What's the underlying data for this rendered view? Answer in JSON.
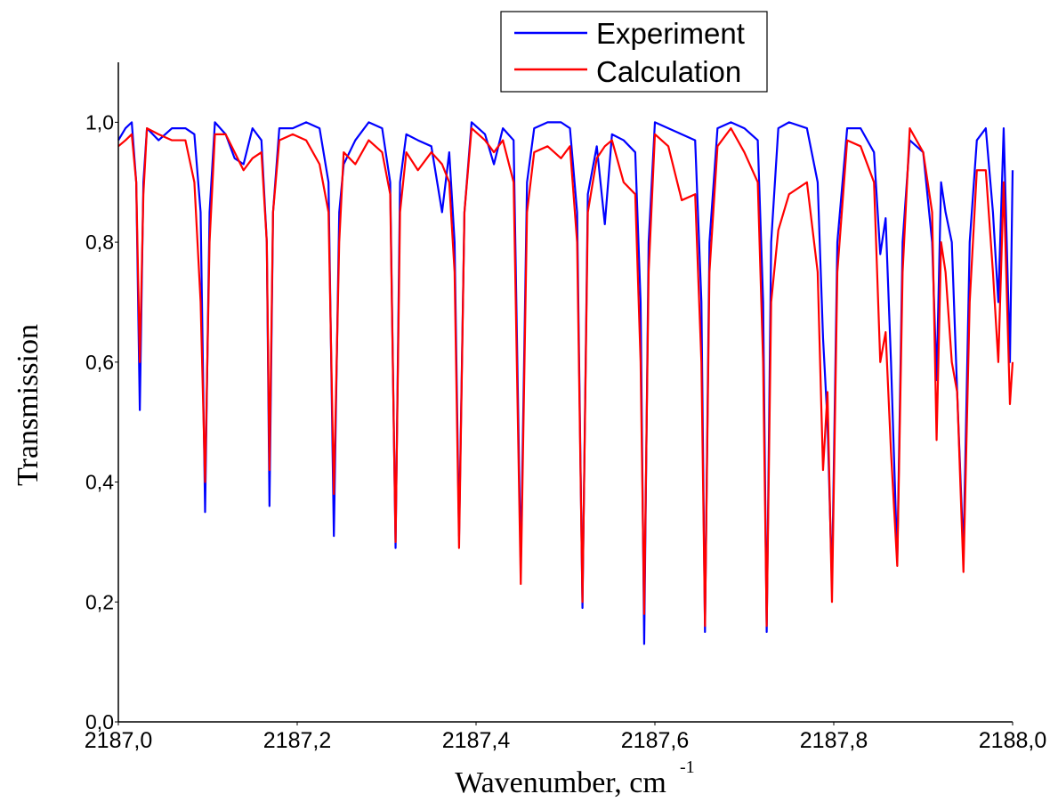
{
  "chart_data": {
    "type": "line",
    "x_label": "Wavenumber, cm",
    "x_label_sup": "-1",
    "y_label": "Transmission",
    "xlim": [
      2187,
      2188
    ],
    "ylim": [
      0,
      1.1
    ],
    "xticks": [
      {
        "value": 2187,
        "label": "2187,0"
      },
      {
        "value": 2187.2,
        "label": "2187,2"
      },
      {
        "value": 2187.4,
        "label": "2187,4"
      },
      {
        "value": 2187.6,
        "label": "2187,6"
      },
      {
        "value": 2187.8,
        "label": "2187,8"
      },
      {
        "value": 2188,
        "label": "2188,0"
      }
    ],
    "yticks": [
      {
        "value": 0,
        "label": "0,0"
      },
      {
        "value": 0.2,
        "label": "0,2"
      },
      {
        "value": 0.4,
        "label": "0,4"
      },
      {
        "value": 0.6,
        "label": "0,6"
      },
      {
        "value": 0.8,
        "label": "0,8"
      },
      {
        "value": 1,
        "label": "1,0"
      }
    ],
    "grid": false,
    "legend": "top-right",
    "x": [
      2187,
      2187.008,
      2187.015,
      2187.02,
      2187.024,
      2187.028,
      2187.032,
      2187.045,
      2187.06,
      2187.075,
      2187.085,
      2187.092,
      2187.097,
      2187.102,
      2187.108,
      2187.12,
      2187.13,
      2187.14,
      2187.15,
      2187.16,
      2187.166,
      2187.169,
      2187.173,
      2187.18,
      2187.195,
      2187.21,
      2187.225,
      2187.235,
      2187.241,
      2187.247,
      2187.252,
      2187.265,
      2187.28,
      2187.295,
      2187.304,
      2187.31,
      2187.315,
      2187.322,
      2187.335,
      2187.35,
      2187.362,
      2187.37,
      2187.376,
      2187.381,
      2187.387,
      2187.395,
      2187.41,
      2187.42,
      2187.43,
      2187.442,
      2187.45,
      2187.457,
      2187.465,
      2187.48,
      2187.495,
      2187.505,
      2187.513,
      2187.519,
      2187.525,
      2187.535,
      2187.544,
      2187.552,
      2187.565,
      2187.578,
      2187.584,
      2187.588,
      2187.593,
      2187.6,
      2187.615,
      2187.63,
      2187.645,
      2187.652,
      2187.656,
      2187.661,
      2187.67,
      2187.685,
      2187.7,
      2187.715,
      2187.721,
      2187.725,
      2187.73,
      2187.738,
      2187.75,
      2187.77,
      2187.782,
      2187.788,
      2187.793,
      2187.798,
      2187.804,
      2187.815,
      2187.83,
      2187.845,
      2187.852,
      2187.858,
      2187.864,
      2187.871,
      2187.877,
      2187.885,
      2187.9,
      2187.91,
      2187.915,
      2187.92,
      2187.925,
      2187.932,
      2187.938,
      2187.945,
      2187.952,
      2187.96,
      2187.97,
      2187.978,
      2187.984,
      2187.99,
      2187.997,
      2188
    ],
    "series": [
      {
        "name": "Experiment",
        "color": "#0000ff",
        "values": [
          0.97,
          0.99,
          1.0,
          0.9,
          0.52,
          0.9,
          0.99,
          0.97,
          0.99,
          0.99,
          0.98,
          0.85,
          0.35,
          0.85,
          1.0,
          0.98,
          0.94,
          0.93,
          0.99,
          0.97,
          0.8,
          0.36,
          0.85,
          0.99,
          0.99,
          1.0,
          0.99,
          0.9,
          0.31,
          0.85,
          0.93,
          0.97,
          1.0,
          0.99,
          0.9,
          0.29,
          0.9,
          0.98,
          0.97,
          0.96,
          0.85,
          0.95,
          0.8,
          0.31,
          0.85,
          1.0,
          0.98,
          0.93,
          0.99,
          0.97,
          0.26,
          0.9,
          0.99,
          1.0,
          1.0,
          0.99,
          0.85,
          0.19,
          0.88,
          0.96,
          0.83,
          0.98,
          0.97,
          0.95,
          0.7,
          0.13,
          0.8,
          1.0,
          0.99,
          0.98,
          0.97,
          0.7,
          0.15,
          0.8,
          0.99,
          1.0,
          0.99,
          0.97,
          0.7,
          0.15,
          0.8,
          0.99,
          1.0,
          0.99,
          0.9,
          0.64,
          0.5,
          0.23,
          0.8,
          0.99,
          0.99,
          0.95,
          0.78,
          0.84,
          0.6,
          0.27,
          0.8,
          0.97,
          0.95,
          0.8,
          0.57,
          0.9,
          0.85,
          0.8,
          0.55,
          0.28,
          0.8,
          0.97,
          0.99,
          0.85,
          0.7,
          0.99,
          0.6,
          0.92
        ]
      },
      {
        "name": "Calculation",
        "color": "#ff0000",
        "values": [
          0.96,
          0.97,
          0.98,
          0.9,
          0.6,
          0.88,
          0.99,
          0.98,
          0.97,
          0.97,
          0.9,
          0.7,
          0.4,
          0.8,
          0.98,
          0.98,
          0.95,
          0.92,
          0.94,
          0.95,
          0.8,
          0.42,
          0.85,
          0.97,
          0.98,
          0.97,
          0.93,
          0.85,
          0.38,
          0.8,
          0.95,
          0.93,
          0.97,
          0.95,
          0.88,
          0.3,
          0.85,
          0.95,
          0.92,
          0.95,
          0.93,
          0.9,
          0.75,
          0.29,
          0.85,
          0.99,
          0.97,
          0.95,
          0.97,
          0.9,
          0.23,
          0.85,
          0.95,
          0.96,
          0.94,
          0.96,
          0.8,
          0.2,
          0.85,
          0.94,
          0.96,
          0.97,
          0.9,
          0.88,
          0.6,
          0.18,
          0.75,
          0.98,
          0.96,
          0.87,
          0.88,
          0.6,
          0.16,
          0.75,
          0.96,
          0.99,
          0.95,
          0.9,
          0.6,
          0.16,
          0.7,
          0.82,
          0.88,
          0.9,
          0.75,
          0.42,
          0.55,
          0.2,
          0.75,
          0.97,
          0.96,
          0.9,
          0.6,
          0.65,
          0.45,
          0.26,
          0.75,
          0.99,
          0.95,
          0.85,
          0.47,
          0.8,
          0.75,
          0.6,
          0.55,
          0.25,
          0.7,
          0.92,
          0.92,
          0.75,
          0.6,
          0.9,
          0.53,
          0.6
        ]
      }
    ]
  }
}
